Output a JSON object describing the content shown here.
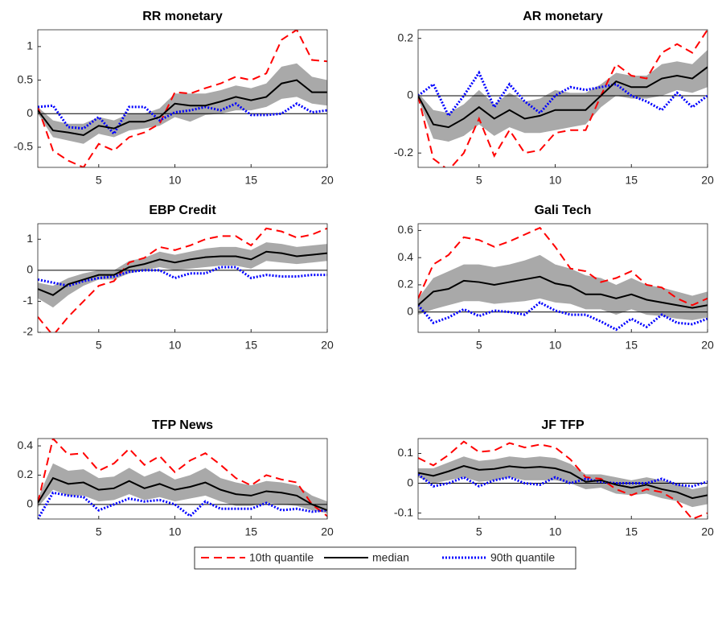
{
  "chart_data": [
    {
      "type": "line",
      "title": "RR monetary",
      "x": [
        1,
        2,
        3,
        4,
        5,
        6,
        7,
        8,
        9,
        10,
        11,
        12,
        13,
        14,
        15,
        16,
        17,
        18,
        19,
        20
      ],
      "xlim": [
        1,
        20
      ],
      "xticks": [
        5,
        10,
        15,
        20
      ],
      "ylim": [
        -0.8,
        1.25
      ],
      "yticks": [
        -0.5,
        0,
        0.5,
        1
      ],
      "band": {
        "color": "#a9a9a9",
        "lower": [
          0.0,
          -0.35,
          -0.4,
          -0.45,
          -0.3,
          -0.35,
          -0.25,
          -0.22,
          -0.18,
          -0.05,
          -0.12,
          -0.02,
          0.0,
          0.05,
          0.05,
          0.1,
          0.22,
          0.25,
          0.15,
          0.12
        ],
        "upper": [
          0.1,
          -0.1,
          -0.15,
          -0.15,
          -0.05,
          -0.1,
          0.0,
          0.0,
          0.08,
          0.3,
          0.3,
          0.3,
          0.35,
          0.42,
          0.38,
          0.45,
          0.7,
          0.75,
          0.55,
          0.5
        ]
      },
      "series": [
        {
          "values": [
            0.1,
            -0.55,
            -0.7,
            -0.8,
            -0.45,
            -0.55,
            -0.35,
            -0.28,
            -0.15,
            0.32,
            0.3,
            0.38,
            0.45,
            0.55,
            0.5,
            0.6,
            1.1,
            1.25,
            0.8,
            0.78
          ]
        },
        {
          "values": [
            0.05,
            -0.25,
            -0.28,
            -0.32,
            -0.18,
            -0.22,
            -0.12,
            -0.12,
            -0.05,
            0.15,
            0.12,
            0.12,
            0.18,
            0.25,
            0.2,
            0.25,
            0.45,
            0.5,
            0.32,
            0.32
          ]
        },
        {
          "values": [
            0.1,
            0.12,
            -0.2,
            -0.22,
            -0.05,
            -0.3,
            0.1,
            0.1,
            -0.1,
            0.02,
            0.05,
            0.1,
            0.05,
            0.15,
            -0.02,
            -0.02,
            0.0,
            0.15,
            0.02,
            0.05
          ]
        }
      ]
    },
    {
      "type": "line",
      "title": "AR monetary",
      "x": [
        1,
        2,
        3,
        4,
        5,
        6,
        7,
        8,
        9,
        10,
        11,
        12,
        13,
        14,
        15,
        16,
        17,
        18,
        19,
        20
      ],
      "xlim": [
        1,
        20
      ],
      "xticks": [
        5,
        10,
        15,
        20
      ],
      "ylim": [
        -0.25,
        0.23
      ],
      "yticks": [
        -0.2,
        0,
        0.2
      ],
      "band": {
        "color": "#a9a9a9",
        "lower": [
          -0.01,
          -0.15,
          -0.16,
          -0.14,
          -0.1,
          -0.14,
          -0.11,
          -0.13,
          -0.13,
          -0.12,
          -0.11,
          -0.1,
          -0.04,
          0,
          -0.01,
          -0.01,
          0.0,
          0.02,
          0.01,
          0.03
        ],
        "upper": [
          0.01,
          -0.05,
          -0.06,
          -0.03,
          0.02,
          -0.03,
          0.01,
          -0.02,
          -0.01,
          0.02,
          0.01,
          0.01,
          0.04,
          0.08,
          0.07,
          0.07,
          0.11,
          0.12,
          0.11,
          0.16
        ]
      },
      "series": [
        {
          "values": [
            0,
            -0.22,
            -0.26,
            -0.2,
            -0.08,
            -0.21,
            -0.12,
            -0.2,
            -0.19,
            -0.13,
            -0.12,
            -0.12,
            0,
            0.11,
            0.07,
            0.06,
            0.15,
            0.18,
            0.15,
            0.23
          ]
        },
        {
          "values": [
            0,
            -0.1,
            -0.11,
            -0.08,
            -0.04,
            -0.08,
            -0.05,
            -0.08,
            -0.07,
            -0.05,
            -0.05,
            -0.05,
            0,
            0.05,
            0.03,
            0.03,
            0.06,
            0.07,
            0.06,
            0.1
          ]
        },
        {
          "values": [
            0,
            0.04,
            -0.07,
            0.0,
            0.08,
            -0.04,
            0.04,
            -0.02,
            -0.06,
            0.0,
            0.03,
            0.02,
            0.03,
            0.04,
            0.0,
            -0.02,
            -0.05,
            0.01,
            -0.04,
            0.0
          ]
        }
      ]
    },
    {
      "type": "line",
      "title": "EBP Credit",
      "x": [
        1,
        2,
        3,
        4,
        5,
        6,
        7,
        8,
        9,
        10,
        11,
        12,
        13,
        14,
        15,
        16,
        17,
        18,
        19,
        20
      ],
      "xlim": [
        1,
        20
      ],
      "xticks": [
        5,
        10,
        15,
        20
      ],
      "ylim": [
        -2,
        1.5
      ],
      "yticks": [
        -2,
        -1,
        0,
        1
      ],
      "band": {
        "color": "#a9a9a9",
        "lower": [
          -0.9,
          -1.2,
          -0.8,
          -0.5,
          -0.3,
          -0.3,
          -0.1,
          0.0,
          0.1,
          0.0,
          0.05,
          0.1,
          0.15,
          0.15,
          0.05,
          0.3,
          0.25,
          0.2,
          0.25,
          0.3
        ],
        "upper": [
          -0.4,
          -0.5,
          -0.25,
          -0.1,
          0.0,
          0.0,
          0.3,
          0.4,
          0.6,
          0.5,
          0.6,
          0.7,
          0.75,
          0.75,
          0.65,
          0.9,
          0.85,
          0.75,
          0.8,
          0.85
        ]
      },
      "series": [
        {
          "values": [
            -1.5,
            -2.1,
            -1.5,
            -1.0,
            -0.5,
            -0.35,
            0.25,
            0.4,
            0.75,
            0.65,
            0.8,
            1.0,
            1.1,
            1.1,
            0.8,
            1.35,
            1.25,
            1.05,
            1.15,
            1.35
          ]
        },
        {
          "values": [
            -0.6,
            -0.8,
            -0.45,
            -0.3,
            -0.15,
            -0.15,
            0.1,
            0.2,
            0.35,
            0.25,
            0.35,
            0.42,
            0.45,
            0.45,
            0.35,
            0.6,
            0.55,
            0.45,
            0.5,
            0.55
          ]
        },
        {
          "values": [
            -0.3,
            -0.4,
            -0.5,
            -0.35,
            -0.25,
            -0.2,
            -0.05,
            0.0,
            0.0,
            -0.25,
            -0.1,
            -0.1,
            0.1,
            0.1,
            -0.25,
            -0.15,
            -0.2,
            -0.2,
            -0.15,
            -0.15
          ]
        }
      ]
    },
    {
      "type": "line",
      "title": "Gali Tech",
      "x": [
        1,
        2,
        3,
        4,
        5,
        6,
        7,
        8,
        9,
        10,
        11,
        12,
        13,
        14,
        15,
        16,
        17,
        18,
        19,
        20
      ],
      "xlim": [
        1,
        20
      ],
      "xticks": [
        5,
        10,
        15,
        20
      ],
      "ylim": [
        -0.15,
        0.65
      ],
      "yticks": [
        0,
        0.2,
        0.4,
        0.6
      ],
      "band": {
        "color": "#a9a9a9",
        "lower": [
          -0.02,
          0.02,
          0.05,
          0.08,
          0.08,
          0.06,
          0.07,
          0.08,
          0.1,
          0.07,
          0.06,
          0.02,
          0.02,
          -0.02,
          0.02,
          -0.02,
          -0.03,
          -0.05,
          -0.06,
          -0.04
        ],
        "upper": [
          0.1,
          0.25,
          0.3,
          0.35,
          0.35,
          0.33,
          0.35,
          0.38,
          0.42,
          0.35,
          0.32,
          0.27,
          0.25,
          0.2,
          0.25,
          0.2,
          0.18,
          0.15,
          0.12,
          0.15
        ]
      },
      "series": [
        {
          "values": [
            0.1,
            0.35,
            0.42,
            0.55,
            0.53,
            0.48,
            0.52,
            0.57,
            0.62,
            0.48,
            0.32,
            0.3,
            0.22,
            0.25,
            0.3,
            0.2,
            0.18,
            0.1,
            0.05,
            0.1
          ]
        },
        {
          "values": [
            0.05,
            0.15,
            0.17,
            0.23,
            0.22,
            0.2,
            0.22,
            0.24,
            0.26,
            0.21,
            0.19,
            0.13,
            0.13,
            0.1,
            0.13,
            0.09,
            0.07,
            0.05,
            0.03,
            0.05
          ]
        },
        {
          "values": [
            0.05,
            -0.08,
            -0.04,
            0.02,
            -0.03,
            0.01,
            0.0,
            -0.02,
            0.07,
            0.01,
            -0.02,
            -0.02,
            -0.07,
            -0.13,
            -0.05,
            -0.11,
            -0.02,
            -0.08,
            -0.09,
            -0.05
          ]
        }
      ]
    },
    {
      "type": "line",
      "title": "TFP News",
      "x": [
        1,
        2,
        3,
        4,
        5,
        6,
        7,
        8,
        9,
        10,
        11,
        12,
        13,
        14,
        15,
        16,
        17,
        18,
        19,
        20
      ],
      "xlim": [
        1,
        20
      ],
      "xticks": [
        5,
        10,
        15,
        20
      ],
      "ylim": [
        -0.1,
        0.45
      ],
      "yticks": [
        0,
        0.2,
        0.4
      ],
      "band": {
        "color": "#a9a9a9",
        "lower": [
          -0.02,
          0.1,
          0.06,
          0.06,
          0.02,
          0.03,
          0.07,
          0.03,
          0.05,
          0.02,
          0.04,
          0.06,
          0.02,
          -0.01,
          -0.01,
          0.01,
          0.0,
          -0.01,
          -0.04,
          -0.06
        ],
        "upper": [
          0.04,
          0.28,
          0.23,
          0.24,
          0.18,
          0.19,
          0.25,
          0.19,
          0.23,
          0.17,
          0.2,
          0.25,
          0.18,
          0.15,
          0.13,
          0.16,
          0.15,
          0.13,
          0.06,
          0.02
        ]
      },
      "series": [
        {
          "values": [
            0.01,
            0.45,
            0.34,
            0.35,
            0.23,
            0.28,
            0.38,
            0.27,
            0.33,
            0.22,
            0.3,
            0.35,
            0.27,
            0.18,
            0.13,
            0.2,
            0.17,
            0.15,
            0.0,
            -0.08
          ]
        },
        {
          "values": [
            0.01,
            0.18,
            0.14,
            0.15,
            0.1,
            0.11,
            0.16,
            0.11,
            0.14,
            0.1,
            0.12,
            0.15,
            0.1,
            0.07,
            0.06,
            0.09,
            0.08,
            0.06,
            0.0,
            -0.04
          ]
        },
        {
          "values": [
            -0.1,
            0.08,
            0.06,
            0.05,
            -0.04,
            0.0,
            0.04,
            0.02,
            0.03,
            0.0,
            -0.08,
            0.02,
            -0.03,
            -0.03,
            -0.03,
            0.01,
            -0.04,
            -0.03,
            -0.05,
            -0.04
          ]
        }
      ]
    },
    {
      "type": "line",
      "title": "JF TFP",
      "x": [
        1,
        2,
        3,
        4,
        5,
        6,
        7,
        8,
        9,
        10,
        11,
        12,
        13,
        14,
        15,
        16,
        17,
        18,
        19,
        20
      ],
      "xlim": [
        1,
        20
      ],
      "xticks": [
        5,
        10,
        15,
        20
      ],
      "ylim": [
        -0.12,
        0.15
      ],
      "yticks": [
        -0.1,
        0,
        0.1
      ],
      "band": {
        "color": "#a9a9a9",
        "lower": [
          0.02,
          0.0,
          0.01,
          0.02,
          0.005,
          0.01,
          0.02,
          0.01,
          0.01,
          0.01,
          0.0,
          -0.02,
          -0.015,
          -0.035,
          -0.04,
          -0.035,
          -0.05,
          -0.06,
          -0.08,
          -0.07
        ],
        "upper": [
          0.05,
          0.05,
          0.07,
          0.09,
          0.075,
          0.08,
          0.09,
          0.085,
          0.09,
          0.085,
          0.065,
          0.03,
          0.03,
          0.02,
          0.01,
          0.02,
          0.01,
          0.0,
          -0.02,
          -0.01
        ]
      },
      "series": [
        {
          "values": [
            0.085,
            0.06,
            0.095,
            0.14,
            0.105,
            0.11,
            0.135,
            0.12,
            0.13,
            0.12,
            0.08,
            0.02,
            0.015,
            -0.02,
            -0.04,
            -0.02,
            -0.03,
            -0.06,
            -0.12,
            -0.1
          ]
        },
        {
          "values": [
            0.035,
            0.025,
            0.04,
            0.058,
            0.045,
            0.048,
            0.057,
            0.052,
            0.055,
            0.05,
            0.035,
            0.005,
            0.01,
            -0.005,
            -0.015,
            -0.005,
            -0.02,
            -0.03,
            -0.05,
            -0.04
          ]
        },
        {
          "values": [
            0.03,
            -0.01,
            0.0,
            0.02,
            -0.01,
            0.01,
            0.02,
            0.0,
            -0.005,
            0.02,
            0.0,
            0.015,
            0.005,
            0.0,
            0.0,
            0.0,
            0.015,
            -0.005,
            -0.01,
            0.005
          ]
        }
      ]
    }
  ],
  "legend": [
    {
      "name": "10th quantile",
      "color": "#ff0000",
      "dash": "dashed"
    },
    {
      "name": "median",
      "color": "#000000",
      "dash": "solid"
    },
    {
      "name": "90th quantile",
      "color": "#0000ff",
      "dash": "dotted"
    }
  ]
}
